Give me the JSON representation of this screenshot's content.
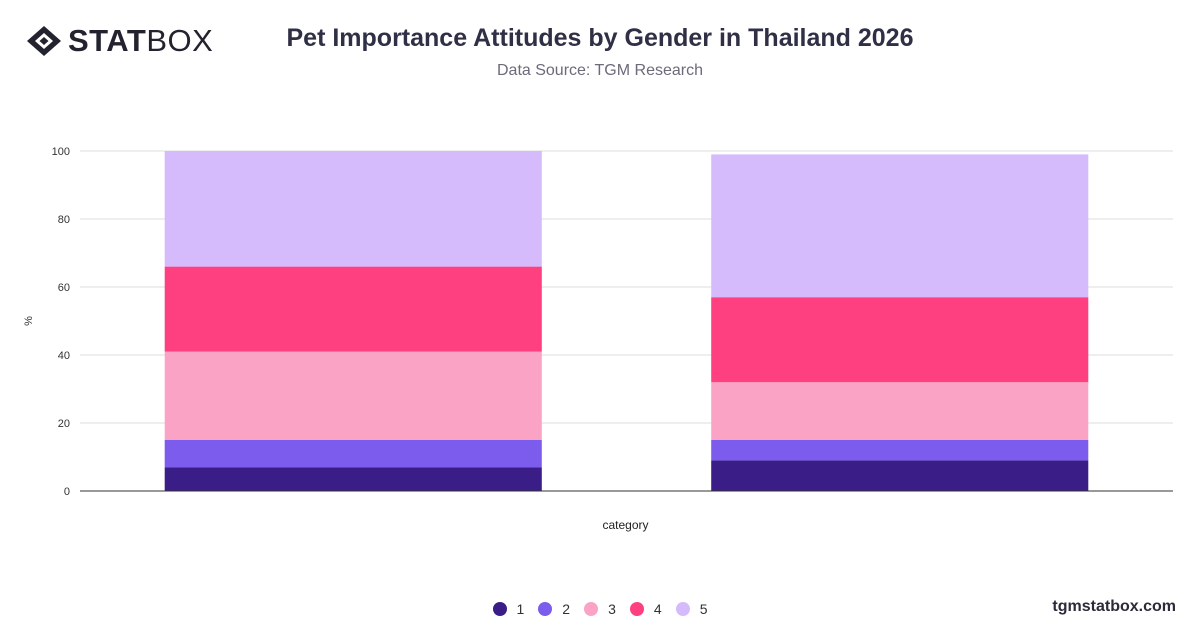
{
  "brand": {
    "name_bold": "STAT",
    "name_light": "BOX",
    "icon": "diamond-logo-icon",
    "footer_url": "tgmstatbox.com"
  },
  "header": {
    "title": "Pet Importance Attitudes by Gender in Thailand 2026",
    "subtitle": "Data Source: TGM Research"
  },
  "chart_data": {
    "type": "bar",
    "stacked": true,
    "title": "Pet Importance Attitudes by Gender in Thailand 2026",
    "subtitle": "Data Source: TGM Research",
    "xlabel": "category",
    "ylabel": "%",
    "ylim": [
      0,
      100
    ],
    "yticks": [
      0,
      20,
      40,
      60,
      80,
      100
    ],
    "categories": [
      "",
      ""
    ],
    "grid": true,
    "legend_position": "bottom",
    "series": [
      {
        "name": "1",
        "color": "#3a1d87",
        "values": [
          7,
          9
        ]
      },
      {
        "name": "2",
        "color": "#7b5cec",
        "values": [
          8,
          6
        ]
      },
      {
        "name": "3",
        "color": "#fba3c4",
        "values": [
          26,
          17
        ]
      },
      {
        "name": "4",
        "color": "#fe3f80",
        "values": [
          25,
          25
        ]
      },
      {
        "name": "5",
        "color": "#d5bbfb",
        "values": [
          34,
          42
        ]
      }
    ]
  }
}
